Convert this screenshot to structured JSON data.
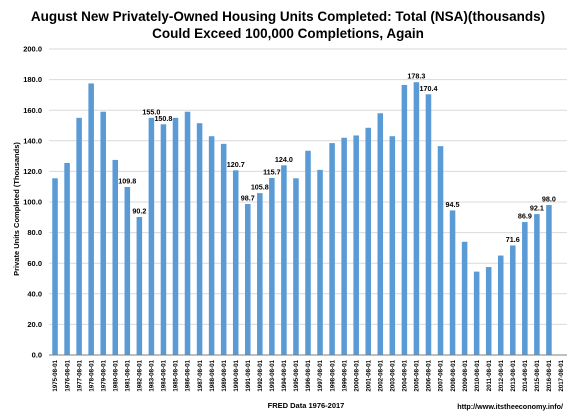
{
  "chart_data": {
    "type": "bar",
    "title": "August New Privately-Owned Housing Units Completed: Total (NSA)(thousands)",
    "subtitle": "Could Exceed 100,000 Completions, Again",
    "ylabel": "Private Units Completed (Thousands)",
    "xlabel": "FRED Data 1976-2017",
    "credit": "http://www.itstheeconomy.info/",
    "ylim": [
      0,
      200
    ],
    "ytick_labels": [
      "0.0",
      "20.0",
      "40.0",
      "60.0",
      "80.0",
      "100.0",
      "120.0",
      "140.0",
      "160.0",
      "180.0",
      "200.0"
    ],
    "grid": true,
    "bar_color": "#5b9bd5",
    "categories": [
      "1975-08-01",
      "1976-08-01",
      "1977-08-01",
      "1978-08-01",
      "1979-08-01",
      "1980-08-01",
      "1981-08-01",
      "1982-08-01",
      "1983-08-01",
      "1984-08-01",
      "1985-08-01",
      "1986-08-01",
      "1987-08-01",
      "1988-08-01",
      "1989-08-01",
      "1990-08-01",
      "1991-08-01",
      "1992-08-01",
      "1993-08-01",
      "1994-08-01",
      "1995-08-01",
      "1996-08-01",
      "1997-08-01",
      "1998-08-01",
      "1999-08-01",
      "2000-08-01",
      "2001-08-01",
      "2002-08-01",
      "2003-08-01",
      "2004-08-01",
      "2005-08-01",
      "2006-08-01",
      "2007-08-01",
      "2008-08-01",
      "2009-08-01",
      "2010-08-01",
      "2011-08-01",
      "2012-08-01",
      "2013-08-01",
      "2014-08-01",
      "2015-08-01",
      "2016-08-01",
      "2017-08-01"
    ],
    "values": [
      115.5,
      125.5,
      155.0,
      177.5,
      159.0,
      127.5,
      109.8,
      90.2,
      155.0,
      150.8,
      155.0,
      159.0,
      151.5,
      143.0,
      138.0,
      120.7,
      98.7,
      105.8,
      115.7,
      124.0,
      115.5,
      133.5,
      121.0,
      138.5,
      142.0,
      143.5,
      148.5,
      158.0,
      143.0,
      176.5,
      178.3,
      170.4,
      136.5,
      94.5,
      74.0,
      54.5,
      57.5,
      65.0,
      71.6,
      86.9,
      92.1,
      98.0,
      null
    ],
    "data_labels": [
      null,
      null,
      null,
      null,
      null,
      null,
      "109.8",
      "90.2",
      "155.0",
      "150.8",
      null,
      null,
      null,
      null,
      null,
      "120.7",
      "98.7",
      "105.8",
      "115.7",
      "124.0",
      null,
      null,
      null,
      null,
      null,
      null,
      null,
      null,
      null,
      null,
      "178.3",
      "170.4",
      null,
      "94.5",
      null,
      null,
      null,
      null,
      "71.6",
      "86.9",
      "92.1",
      "98.0",
      null
    ]
  }
}
